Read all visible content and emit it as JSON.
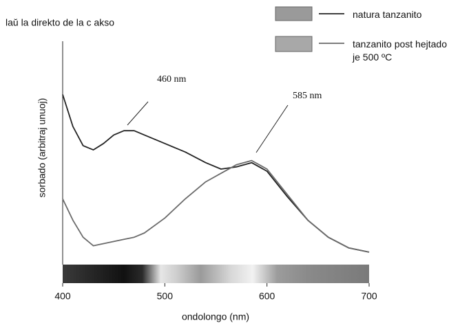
{
  "chart_data": {
    "type": "line",
    "title": "laŭ la direkto de la c akso",
    "x_label": "ondolongo (nm)",
    "y_label": "sorbado (arbitraj unuoj)",
    "x": [
      400,
      410,
      420,
      430,
      440,
      450,
      460,
      470,
      480,
      500,
      520,
      540,
      555,
      570,
      585,
      600,
      620,
      640,
      660,
      680,
      700
    ],
    "series": [
      {
        "name": "natura tanzanito",
        "color": "#222222",
        "values": [
          75,
          60,
          51,
          49,
          52,
          56,
          58,
          58,
          56,
          52,
          48,
          43,
          40,
          41,
          43,
          39,
          27,
          16,
          8,
          3,
          1
        ]
      },
      {
        "name": "tanzanito post hejtado je 500 ºC",
        "color": "#6a6a6a",
        "values": [
          26,
          16,
          8,
          4,
          5,
          6,
          7,
          8,
          10,
          17,
          26,
          34,
          38,
          42,
          44,
          40,
          28,
          16,
          8,
          3,
          1
        ]
      }
    ],
    "annotations": [
      "460 nm",
      "585 nm"
    ],
    "xlim": [
      400,
      700
    ],
    "xticks": [
      400,
      500,
      600,
      700
    ],
    "ylim": [
      0,
      100
    ]
  }
}
